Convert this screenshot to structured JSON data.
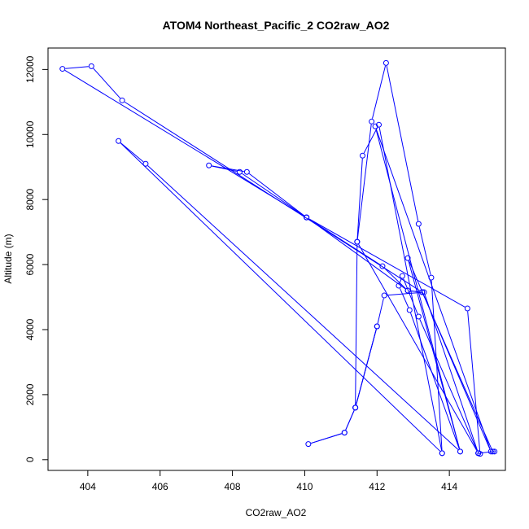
{
  "chart_data": {
    "type": "line",
    "title": "ATOM4 Northeast_Pacific_2 CO2raw_AO2",
    "xlabel": "CO2raw_AO2",
    "ylabel": "Altitude (m)",
    "xlim": [
      402.9,
      415.55
    ],
    "ylim": [
      -330,
      12660
    ],
    "xticks": [
      404,
      406,
      408,
      410,
      412,
      414
    ],
    "yticks": [
      0,
      2000,
      4000,
      6000,
      8000,
      10000,
      12000
    ],
    "grid": false,
    "markers": "open-circle",
    "series": [
      {
        "color": "#0000ff",
        "x": [
          413.8,
          413.5,
          413.15,
          412.25,
          411.85,
          411.45,
          411.4,
          412.0,
          411.4,
          411.1,
          410.1,
          411.1,
          411.4,
          412.0,
          412.2,
          413.3,
          414.8,
          415.25,
          415.2,
          413.25,
          412.85,
          412.15,
          410.05,
          408.2,
          407.35,
          408.4,
          410.05,
          412.85,
          413.25,
          404.95,
          404.1,
          403.3,
          410.05,
          414.5,
          414.85,
          414.8,
          413.15,
          412.7,
          412.6,
          412.9,
          414.3,
          411.95,
          415.15,
          412.85,
          414.3,
          405.6,
          404.85,
          413.8,
          412.05,
          411.6,
          411.45,
          414.8
        ]
      },
      {
        "color": "#0000ff",
        "y": [
          200,
          5600,
          7250,
          12200,
          10400,
          6700,
          1600,
          4100,
          1600,
          830,
          480,
          830,
          1600,
          4100,
          5050,
          5150,
          200,
          250,
          250,
          5150,
          5200,
          5950,
          7450,
          8850,
          9050,
          8850,
          7450,
          5200,
          5150,
          11050,
          12100,
          12020,
          7450,
          4650,
          180,
          200,
          4400,
          5650,
          5350,
          4600,
          250,
          10250,
          250,
          6200,
          250,
          9100,
          9800,
          200,
          10300,
          9350,
          6700,
          200
        ]
      }
    ]
  }
}
